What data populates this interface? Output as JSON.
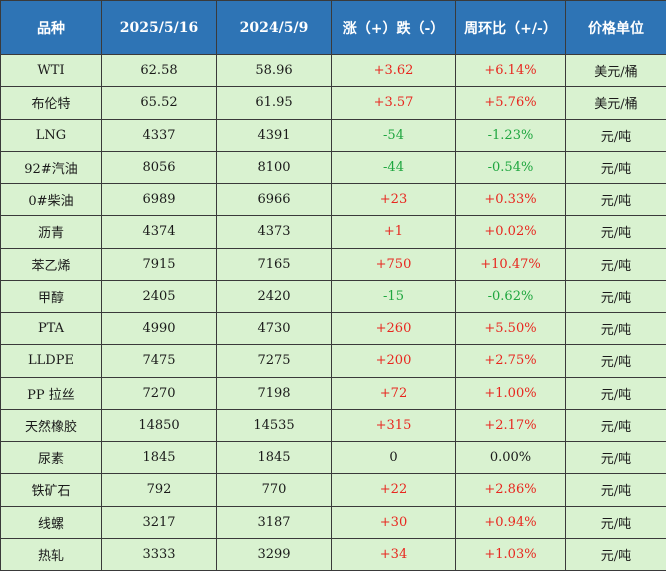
{
  "table": {
    "headers": [
      "品种",
      "2025/5/16",
      "2024/5/9",
      "涨（+）跌（-）",
      "周环比（+/-）",
      "价格单位"
    ],
    "rows": [
      [
        "WTI",
        "62.58",
        "58.96",
        "+3.62",
        "+6.14%",
        "美元/桶"
      ],
      [
        "布伦特",
        "65.52",
        "61.95",
        "+3.57",
        "+5.76%",
        "美元/桶"
      ],
      [
        "LNG",
        "4337",
        "4391",
        "-54",
        "-1.23%",
        "元/吨"
      ],
      [
        "92#汽油",
        "8056",
        "8100",
        "-44",
        "-0.54%",
        "元/吨"
      ],
      [
        "0#柴油",
        "6989",
        "6966",
        "+23",
        "+0.33%",
        "元/吨"
      ],
      [
        "沥青",
        "4374",
        "4373",
        "+1",
        "+0.02%",
        "元/吨"
      ],
      [
        "苯乙烯",
        "7915",
        "7165",
        "+750",
        "+10.47%",
        "元/吨"
      ],
      [
        "甲醇",
        "2405",
        "2420",
        "-15",
        "-0.62%",
        "元/吨"
      ],
      [
        "PTA",
        "4990",
        "4730",
        "+260",
        "+5.50%",
        "元/吨"
      ],
      [
        "LLDPE",
        "7475",
        "7275",
        "+200",
        "+2.75%",
        "元/吨"
      ],
      [
        "PP 拉丝",
        "7270",
        "7198",
        "+72",
        "+1.00%",
        "元/吨"
      ],
      [
        "天然橡胶",
        "14850",
        "14535",
        "+315",
        "+2.17%",
        "元/吨"
      ],
      [
        "尿素",
        "1845",
        "1845",
        "0",
        "0.00%",
        "元/吨"
      ],
      [
        "铁矿石",
        "792",
        "770",
        "+22",
        "+2.86%",
        "元/吨"
      ],
      [
        "线螺",
        "3217",
        "3187",
        "+30",
        "+0.94%",
        "元/吨"
      ],
      [
        "热轧",
        "3333",
        "3299",
        "+34",
        "+1.03%",
        "元/吨"
      ]
    ]
  },
  "colors": {
    "header_bg": "#2e74b5",
    "header_text": "#ffffff",
    "body_bg": "#d9f2d0",
    "positive": "#e8271f",
    "negative": "#1fa63f",
    "neutral": "#1a1a1a"
  }
}
